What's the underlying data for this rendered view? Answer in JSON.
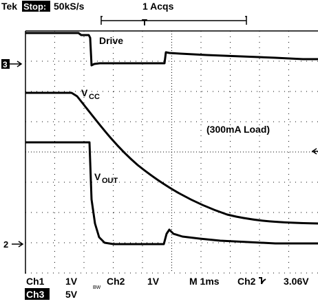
{
  "header": {
    "brand": "Tek",
    "status": "Stop:",
    "rate": "50kS/s",
    "acquisitions": "1 Acqs",
    "trigger": "T"
  },
  "labels": {
    "drive": "Drive",
    "vcc": {
      "main": "V",
      "sub": "CC"
    },
    "load": "(300mA Load)",
    "vout": {
      "main": "V",
      "sub": "OUT"
    }
  },
  "markers": {
    "ch3": "3",
    "ch2": "2"
  },
  "footer": {
    "ch1": "Ch1",
    "ch1_scale": "1V",
    "bandwidth": "BW",
    "ch2": "Ch2",
    "ch2_scale": "1V",
    "timebase": "M 1ms",
    "trigger_source": "Ch2",
    "trigger_level": "3.06V",
    "ch3": "Ch3",
    "ch3_scale": "5V"
  }
}
